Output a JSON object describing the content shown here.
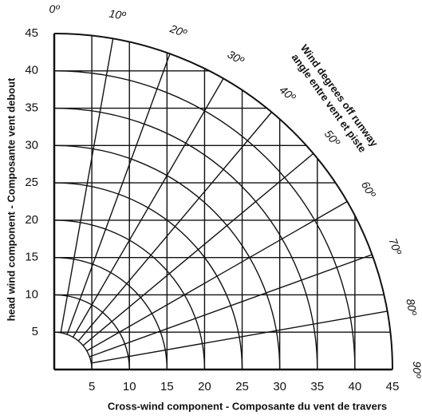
{
  "chart_data": {
    "type": "crosswind",
    "x_label": "Cross-wind component - Composante du vent de travers",
    "y_label": "head wind component - Composante vent debout",
    "angle_label": [
      "Wind degrees off runway",
      "angle entre vent et piste"
    ],
    "xlim": [
      0,
      45
    ],
    "ylim": [
      0,
      45
    ],
    "xticks": [
      5,
      10,
      15,
      20,
      25,
      30,
      35,
      40,
      45
    ],
    "yticks": [
      5,
      10,
      15,
      20,
      25,
      30,
      35,
      40,
      45
    ],
    "angle_ticks": [
      {
        "value": 0,
        "label": "0º"
      },
      {
        "value": 10,
        "label": "10º"
      },
      {
        "value": 20,
        "label": "20º"
      },
      {
        "value": 30,
        "label": "30º"
      },
      {
        "value": 40,
        "label": "40º"
      },
      {
        "value": 50,
        "label": "50º"
      },
      {
        "value": 60,
        "label": "60º"
      },
      {
        "value": 70,
        "label": "70º"
      },
      {
        "value": 80,
        "label": "80º"
      },
      {
        "value": 90,
        "label": "90º"
      }
    ],
    "color": "#111111"
  }
}
